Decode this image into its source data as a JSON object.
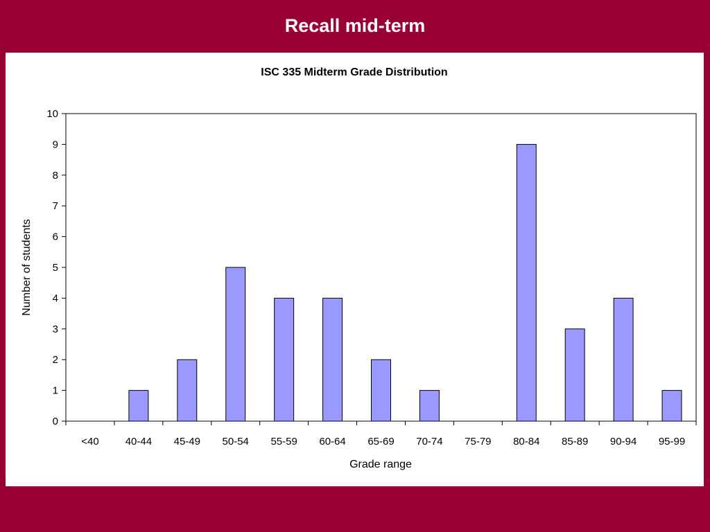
{
  "slide": {
    "title": "Recall mid-term"
  },
  "colors": {
    "background": "#990033",
    "panel": "#ffffff",
    "bar_fill": "#9999ff",
    "bar_stroke": "#000000"
  },
  "chart_data": {
    "type": "bar",
    "title": "ISC 335 Midterm Grade Distribution",
    "xlabel": "Grade range",
    "ylabel": "Number of students",
    "categories": [
      "<40",
      "40-44",
      "45-49",
      "50-54",
      "55-59",
      "60-64",
      "65-69",
      "70-74",
      "75-79",
      "80-84",
      "85-89",
      "90-94",
      "95-99"
    ],
    "values": [
      0,
      1,
      2,
      5,
      4,
      4,
      2,
      1,
      0,
      9,
      3,
      4,
      1
    ],
    "ylim": [
      0,
      10
    ],
    "yticks": [
      0,
      1,
      2,
      3,
      4,
      5,
      6,
      7,
      8,
      9,
      10
    ],
    "grid": false,
    "legend": "none"
  }
}
